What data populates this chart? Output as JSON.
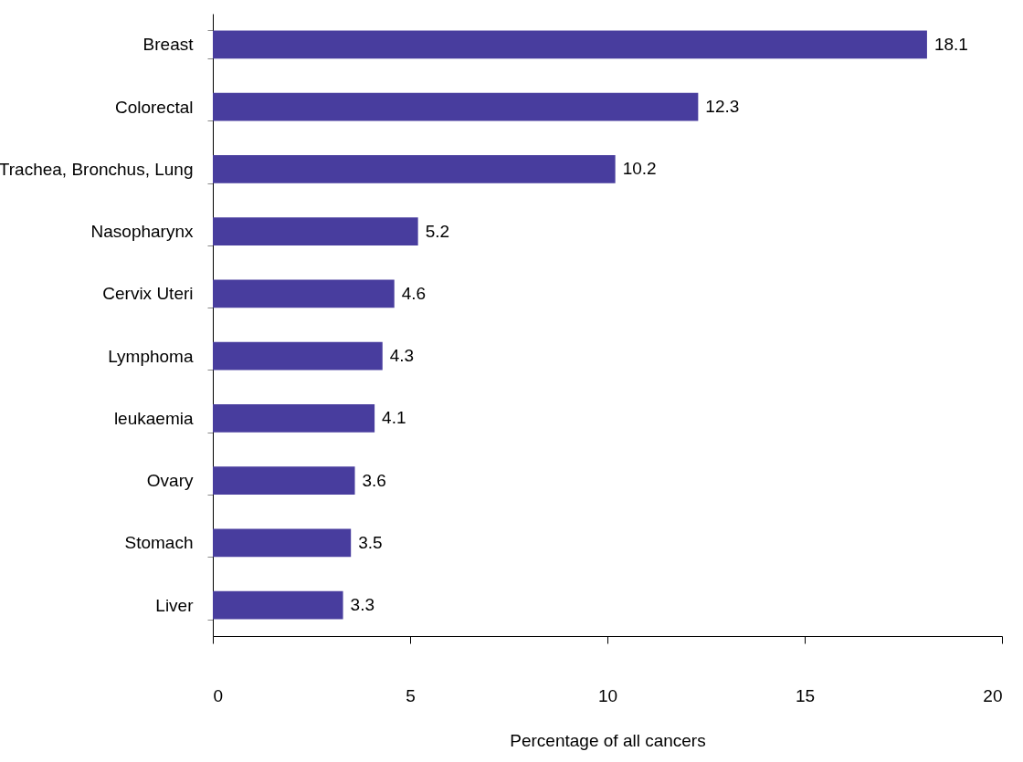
{
  "chart_data": {
    "type": "bar",
    "orientation": "horizontal",
    "xlabel": "Percentage of all cancers",
    "categories": [
      "Breast",
      "Colorectal",
      "Trachea, Bronchus, Lung",
      "Nasopharynx",
      "Cervix Uteri",
      "Lymphoma",
      "leukaemia",
      "Ovary",
      "Stomach",
      "Liver"
    ],
    "values": [
      18.1,
      12.3,
      10.2,
      5.2,
      4.6,
      4.3,
      4.1,
      3.6,
      3.5,
      3.3
    ],
    "color": "#483d9e",
    "xlim": [
      0,
      20
    ],
    "xticks": [
      0,
      5,
      10,
      15,
      20
    ],
    "data_labels": true,
    "grid": false
  }
}
